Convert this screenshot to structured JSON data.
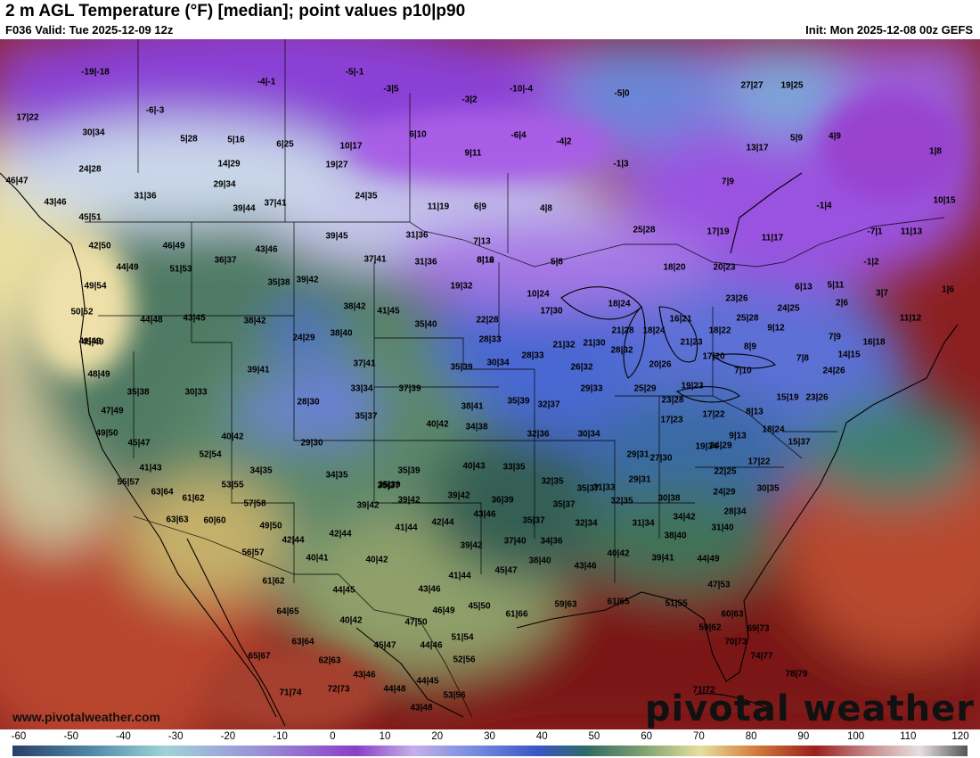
{
  "header": {
    "title": "2 m AGL Temperature (°F) [median]; point values p10|p90",
    "subtitle": "F036 Valid: Tue 2025-12-09 12z",
    "init": "Init: Mon 2025-12-08 00z GEFS"
  },
  "footer": {
    "credit": "www.pivotalweather.com",
    "brand": "pivotal weather"
  },
  "legend": {
    "ticks": [
      "-60",
      "-50",
      "-40",
      "-30",
      "-20",
      "-10",
      "0",
      "10",
      "20",
      "30",
      "40",
      "50",
      "60",
      "70",
      "80",
      "90",
      "100",
      "110",
      "120"
    ]
  },
  "point_values": [
    "-19|-18",
    "-4|-1",
    "-5|-1",
    "-3|5",
    "-3|2",
    "-10|-4",
    "-5|0",
    "27|27",
    "19|25",
    "17|22",
    "-6|-3",
    "30|34",
    "5|28",
    "5|16",
    "6|25",
    "10|17",
    "6|10",
    "-6|4",
    "-4|2",
    "13|17",
    "5|9",
    "4|9",
    "24|28",
    "14|29",
    "19|27",
    "9|11",
    "-1|3",
    "1|8",
    "46|47",
    "29|34",
    "7|9",
    "31|36",
    "43|46",
    "39|44",
    "37|41",
    "24|35",
    "11|19",
    "6|9",
    "4|8",
    "-1|4",
    "10|15",
    "45|51",
    "46|49",
    "36|37",
    "43|46",
    "39|45",
    "31|36",
    "7|13",
    "8|12",
    "25|28",
    "17|19",
    "11|17",
    "-7|1",
    "11|13",
    "42|50",
    "44|49",
    "51|53",
    "37|41",
    "31|36",
    "8|16",
    "5|8",
    "-1|2",
    "49|54",
    "35|38",
    "39|42",
    "19|32",
    "10|24",
    "18|20",
    "20|23",
    "6|13",
    "5|11",
    "1|6",
    "50|52",
    "44|48",
    "43|45",
    "38|42",
    "38|42",
    "41|45",
    "22|28",
    "17|30",
    "18|24",
    "16|21",
    "23|26",
    "25|28",
    "24|25",
    "2|6",
    "3|7",
    "11|12",
    "45|49",
    "24|29",
    "38|40",
    "35|40",
    "28|33",
    "21|32",
    "21|30",
    "21|28",
    "18|24",
    "21|23",
    "18|22",
    "9|12",
    "7|9",
    "16|18",
    "41|43",
    "39|41",
    "37|41",
    "30|34",
    "28|33",
    "28|32",
    "8|9",
    "17|20",
    "14|15",
    "7|8",
    "48|49",
    "35|38",
    "30|33",
    "33|34",
    "37|39",
    "35|39",
    "26|32",
    "20|26",
    "7|10",
    "24|26",
    "47|49",
    "28|30",
    "35|37",
    "38|41",
    "35|39",
    "32|37",
    "29|33",
    "25|29",
    "19|23",
    "17|22",
    "15|19",
    "23|26",
    "49|50",
    "40|42",
    "40|42",
    "34|38",
    "32|36",
    "30|34",
    "23|28",
    "17|23",
    "8|13",
    "18|24",
    "45|47",
    "52|54",
    "29|30",
    "35|39",
    "33|35",
    "24|29",
    "9|13",
    "15|37",
    "41|43",
    "34|35",
    "40|43",
    "35|37",
    "29|31",
    "27|30",
    "19|34",
    "17|22",
    "22|25",
    "55|57",
    "53|55",
    "34|35",
    "35|39",
    "32|35",
    "31|33",
    "29|31",
    "30|35",
    "63|64",
    "61|62",
    "35|37",
    "39|42",
    "36|39",
    "35|37",
    "32|35",
    "30|38",
    "24|29",
    "63|63",
    "60|60",
    "57|58",
    "39|42",
    "39|42",
    "43|46",
    "32|34",
    "31|34",
    "34|42",
    "28|34",
    "49|50",
    "42|44",
    "42|44",
    "41|44",
    "42|44",
    "35|37",
    "31|40",
    "56|57",
    "40|41",
    "40|42",
    "39|42",
    "37|40",
    "34|36",
    "38|40",
    "61|62",
    "44|45",
    "43|46",
    "41|44",
    "45|47",
    "38|40",
    "43|46",
    "40|42",
    "39|41",
    "44|49",
    "64|65",
    "40|42",
    "47|50",
    "46|49",
    "45|50",
    "61|66",
    "59|63",
    "61|65",
    "51|55",
    "47|53",
    "63|64",
    "45|47",
    "44|46",
    "51|54",
    "59|62",
    "60|63",
    "69|73",
    "65|67",
    "62|63",
    "43|46",
    "52|56",
    "70|73",
    "74|77",
    "71|74",
    "72|73",
    "44|48",
    "44|45",
    "53|56",
    "78|79",
    "43|48",
    "71|72"
  ]
}
